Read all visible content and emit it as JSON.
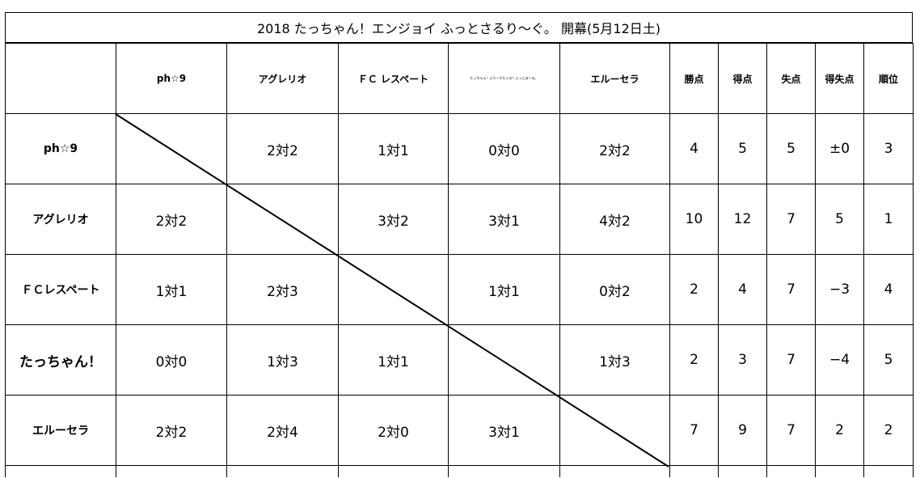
{
  "title": "2018 たっちゃん！エンジョイ ふっとさるり〜ぐ。 開幕(5月12日土)",
  "header": {
    "teams": [
      "ph☆9",
      "アグレリオ",
      "ＦＣ レスペート",
      "たっちゃん！ふりーすたいる？ふっとぼーる。",
      "エルーセラ"
    ],
    "stats": [
      "勝点",
      "得点",
      "失点",
      "得失点",
      "順位"
    ]
  },
  "rows": [
    {
      "name": "ph☆9",
      "results": [
        "",
        "2対2",
        "1対1",
        "0対0",
        "2対2"
      ],
      "stats": [
        "4",
        "5",
        "5",
        "±0",
        "3"
      ]
    },
    {
      "name": "アグレリオ",
      "results": [
        "2対2",
        "",
        "3対2",
        "3対1",
        "4対2"
      ],
      "stats": [
        "10",
        "12",
        "7",
        "5",
        "1"
      ]
    },
    {
      "name": "ＦＣレスペート",
      "results": [
        "1対1",
        "2対3",
        "",
        "1対1",
        "0対2"
      ],
      "stats": [
        "2",
        "4",
        "7",
        "−3",
        "4"
      ]
    },
    {
      "name": "たっちゃん！",
      "results": [
        "0対0",
        "1対3",
        "1対1",
        "",
        "1対3"
      ],
      "stats": [
        "2",
        "3",
        "7",
        "−4",
        "5"
      ]
    },
    {
      "name": "エルーセラ",
      "results": [
        "2対2",
        "2対4",
        "2対0",
        "3対1",
        ""
      ],
      "stats": [
        "7",
        "9",
        "7",
        "2",
        "2"
      ]
    }
  ]
}
